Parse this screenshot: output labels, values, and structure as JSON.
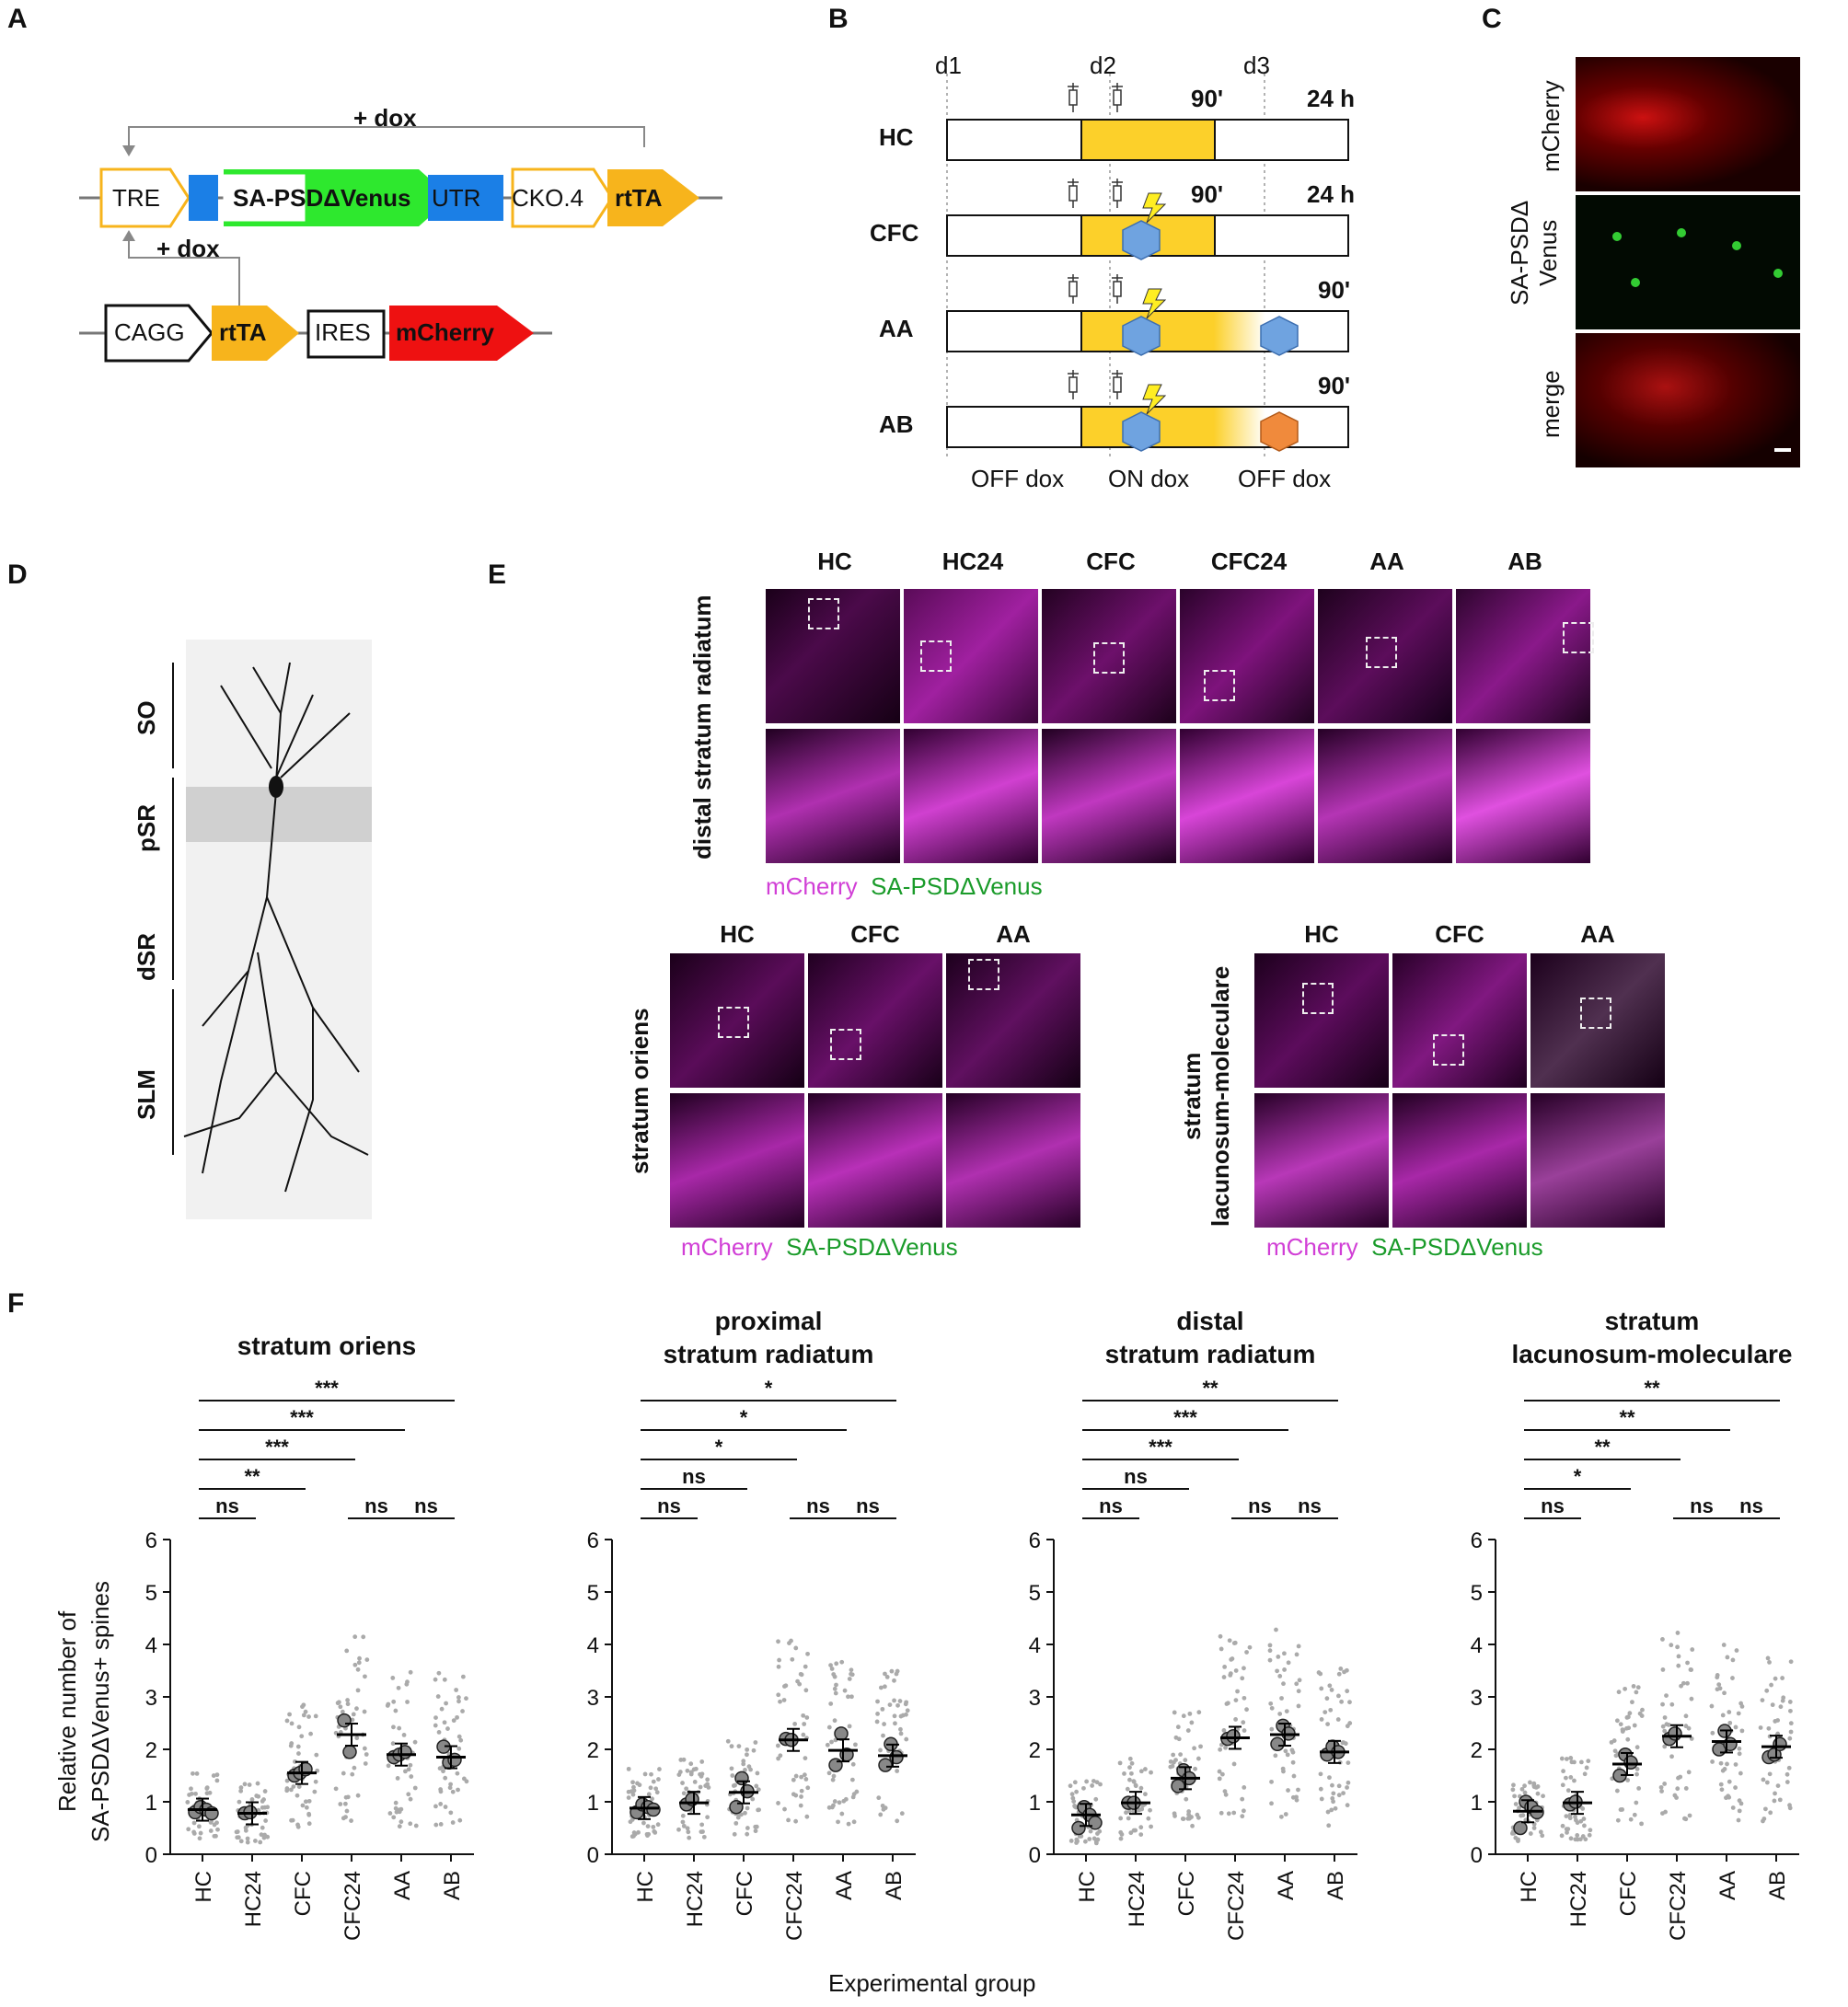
{
  "panels": {
    "A": "A",
    "B": "B",
    "C": "C",
    "D": "D",
    "E": "E",
    "F": "F"
  },
  "panelA": {
    "dox1": "+ dox",
    "dox2": "+ dox",
    "row1": [
      "TRE",
      "SA-PSDΔVenus",
      "UTR",
      "CKO.4",
      "rtTA"
    ],
    "row2": [
      "CAGG",
      "rtTA",
      "IRES",
      "mCherry"
    ],
    "colors": {
      "yellow": "#f7b41c",
      "green": "#2ee82e",
      "blue": "#1b7fe6",
      "red": "#ee1111"
    }
  },
  "panelB": {
    "days": [
      "d1",
      "d2",
      "d3"
    ],
    "rows": [
      {
        "label": "HC",
        "left": "90'",
        "right": "24 h"
      },
      {
        "label": "CFC",
        "left": "90'",
        "right": "24 h"
      },
      {
        "label": "AA",
        "left": "",
        "right": "90'"
      },
      {
        "label": "AB",
        "left": "",
        "right": "90'"
      }
    ],
    "bottom": [
      "OFF dox",
      "ON dox",
      "OFF dox"
    ],
    "colors": {
      "dox": "#fcd02a",
      "contextA": "#6fa3e0",
      "contextB": "#f08a3c",
      "shock": "#ffee22"
    }
  },
  "panelC": {
    "labels": [
      "mCherry",
      "SA-PSDΔ Venus",
      "merge"
    ]
  },
  "panelD": {
    "layers": [
      "SO",
      "pSR",
      "dSR",
      "SLM"
    ]
  },
  "panelE": {
    "top": {
      "region": "distal stratum radiatum",
      "groups": [
        "HC",
        "HC24",
        "CFC",
        "CFC24",
        "AA",
        "AB"
      ]
    },
    "left": {
      "region": "stratum oriens",
      "groups": [
        "HC",
        "CFC",
        "AA"
      ]
    },
    "right": {
      "region1": "stratum",
      "region2": "lacunosum-moleculare",
      "groups": [
        "HC",
        "CFC",
        "AA"
      ]
    },
    "legend_m": "mCherry",
    "legend_g": "SA-PSDΔVenus"
  },
  "panelF": {
    "ylabel1": "Relative number of",
    "ylabel2": "SA-PSDΔVenus+ spines",
    "xlabel": "Experimental group",
    "categories": [
      "HC",
      "HC24",
      "CFC",
      "CFC24",
      "AA",
      "AB"
    ],
    "yticks": [
      "0",
      "1",
      "2",
      "3",
      "4",
      "5",
      "6"
    ]
  },
  "chart_data": [
    {
      "type": "scatter",
      "title": "stratum oriens",
      "categories": [
        "HC",
        "HC24",
        "CFC",
        "CFC24",
        "AA",
        "AB"
      ],
      "means": [
        0.85,
        0.78,
        1.55,
        2.28,
        1.9,
        1.85
      ],
      "animal_means": [
        [
          0.8,
          0.9,
          0.85,
          0.78
        ],
        [
          0.78,
          0.8
        ],
        [
          1.5,
          1.55,
          1.62
        ],
        [
          2.55,
          1.95
        ],
        [
          1.85,
          1.9,
          1.95
        ],
        [
          2.05,
          1.75,
          1.8
        ]
      ],
      "ylim": [
        0,
        6
      ],
      "significance": [
        {
          "from": "HC",
          "to": "HC24",
          "label": "ns"
        },
        {
          "from": "CFC24",
          "to": "AA",
          "label": "ns"
        },
        {
          "from": "AA",
          "to": "AB",
          "label": "ns"
        },
        {
          "from": "HC",
          "to": "CFC",
          "label": "**"
        },
        {
          "from": "HC",
          "to": "CFC24",
          "label": "***"
        },
        {
          "from": "HC",
          "to": "AA",
          "label": "***"
        },
        {
          "from": "HC",
          "to": "AB",
          "label": "***"
        }
      ]
    },
    {
      "type": "scatter",
      "title": "proximal stratum radiatum",
      "title_lines": [
        "proximal",
        "stratum radiatum"
      ],
      "categories": [
        "HC",
        "HC24",
        "CFC",
        "CFC24",
        "AA",
        "AB"
      ],
      "means": [
        0.88,
        0.98,
        1.18,
        2.18,
        1.98,
        1.88
      ],
      "animal_means": [
        [
          0.8,
          0.95,
          0.9,
          0.85
        ],
        [
          0.95,
          1.05
        ],
        [
          0.9,
          1.45,
          1.2
        ],
        [
          2.2,
          2.18
        ],
        [
          1.7,
          2.3,
          1.9
        ],
        [
          1.7,
          2.1,
          1.85
        ]
      ],
      "ylim": [
        0,
        6
      ],
      "significance": [
        {
          "from": "HC",
          "to": "HC24",
          "label": "ns"
        },
        {
          "from": "CFC24",
          "to": "AA",
          "label": "ns"
        },
        {
          "from": "AA",
          "to": "AB",
          "label": "ns"
        },
        {
          "from": "HC",
          "to": "CFC",
          "label": "ns"
        },
        {
          "from": "HC",
          "to": "CFC24",
          "label": "*"
        },
        {
          "from": "HC",
          "to": "AA",
          "label": "*"
        },
        {
          "from": "HC",
          "to": "AB",
          "label": "*"
        }
      ]
    },
    {
      "type": "scatter",
      "title": "distal stratum radiatum",
      "title_lines": [
        "distal",
        "stratum radiatum"
      ],
      "categories": [
        "HC",
        "HC24",
        "CFC",
        "CFC24",
        "AA",
        "AB"
      ],
      "means": [
        0.75,
        0.98,
        1.45,
        2.22,
        2.28,
        1.95
      ],
      "animal_means": [
        [
          0.5,
          0.9,
          0.75,
          0.6
        ],
        [
          0.98,
          0.98
        ],
        [
          1.3,
          1.6,
          1.45
        ],
        [
          2.2,
          2.25
        ],
        [
          2.1,
          2.45,
          2.3
        ],
        [
          1.9,
          2.05,
          1.95
        ]
      ],
      "ylim": [
        0,
        6
      ],
      "significance": [
        {
          "from": "HC",
          "to": "HC24",
          "label": "ns"
        },
        {
          "from": "CFC24",
          "to": "AA",
          "label": "ns"
        },
        {
          "from": "AA",
          "to": "AB",
          "label": "ns"
        },
        {
          "from": "HC",
          "to": "CFC",
          "label": "ns"
        },
        {
          "from": "HC",
          "to": "CFC24",
          "label": "***"
        },
        {
          "from": "HC",
          "to": "AA",
          "label": "***"
        },
        {
          "from": "HC",
          "to": "AB",
          "label": "**"
        }
      ]
    },
    {
      "type": "scatter",
      "title": "stratum lacunosum-moleculare",
      "title_lines": [
        "stratum",
        "lacunosum-moleculare"
      ],
      "categories": [
        "HC",
        "HC24",
        "CFC",
        "CFC24",
        "AA",
        "AB"
      ],
      "means": [
        0.82,
        0.98,
        1.72,
        2.25,
        2.15,
        2.05
      ],
      "animal_means": [
        [
          0.5,
          1.0,
          0.9,
          0.8
        ],
        [
          0.95,
          1.0
        ],
        [
          1.5,
          1.9,
          1.75
        ],
        [
          2.2,
          2.3
        ],
        [
          2.0,
          2.35,
          2.1
        ],
        [
          1.85,
          1.9,
          2.1
        ]
      ],
      "ylim": [
        0,
        6
      ],
      "significance": [
        {
          "from": "HC",
          "to": "HC24",
          "label": "ns"
        },
        {
          "from": "CFC24",
          "to": "AA",
          "label": "ns"
        },
        {
          "from": "AA",
          "to": "AB",
          "label": "ns"
        },
        {
          "from": "HC",
          "to": "CFC",
          "label": "*"
        },
        {
          "from": "HC",
          "to": "CFC24",
          "label": "**"
        },
        {
          "from": "HC",
          "to": "AA",
          "label": "**"
        },
        {
          "from": "HC",
          "to": "AB",
          "label": "**"
        }
      ]
    }
  ]
}
